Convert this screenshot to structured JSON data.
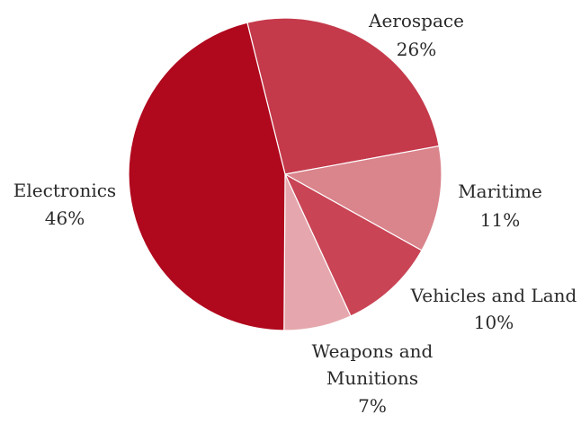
{
  "chart_data": {
    "type": "pie",
    "title": "",
    "start_angle_deg": -14,
    "direction": "clockwise",
    "slices": [
      {
        "label": "Aerospace",
        "value_label": "26%",
        "value": 26,
        "color": "#c43a4b"
      },
      {
        "label": "Maritime",
        "value_label": "11%",
        "value": 11,
        "color": "#da848c"
      },
      {
        "label": "Vehicles and Land",
        "value_label": "10%",
        "value": 10,
        "color": "#c94455"
      },
      {
        "label": "Weapons and Munitions",
        "value_label": "7%",
        "value": 7,
        "color": "#e5a7ad"
      },
      {
        "label": "Electronics",
        "value_label": "46%",
        "value": 46,
        "color": "#b0081d"
      }
    ]
  }
}
